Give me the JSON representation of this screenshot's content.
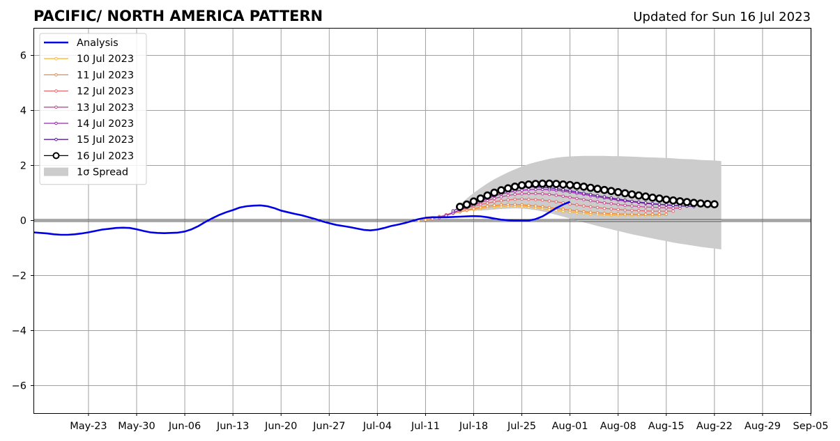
{
  "chart_data": {
    "type": "line",
    "title": "PACIFIC/ NORTH AMERICA PATTERN",
    "subtitle": "Updated for Sun 16 Jul 2023",
    "xlabel": "",
    "ylabel": "",
    "xlim": [
      "2023-05-15",
      "2023-09-05"
    ],
    "ylim": [
      -7,
      7
    ],
    "yticks": [
      6,
      4,
      2,
      0,
      -2,
      -4,
      -6
    ],
    "ytick_labels": [
      "6",
      "4",
      "2",
      "0",
      "−2",
      "−4",
      "−6"
    ],
    "xticks": [
      "2023-05-23",
      "2023-05-30",
      "2023-06-06",
      "2023-06-13",
      "2023-06-20",
      "2023-06-27",
      "2023-07-04",
      "2023-07-11",
      "2023-07-18",
      "2023-07-25",
      "2023-08-01",
      "2023-08-08",
      "2023-08-15",
      "2023-08-22",
      "2023-08-29",
      "2023-09-05"
    ],
    "xtick_labels": [
      "May-23",
      "May-30",
      "Jun-06",
      "Jun-13",
      "Jun-20",
      "Jun-27",
      "Jul-04",
      "Jul-11",
      "Jul-18",
      "Jul-25",
      "Aug-01",
      "Aug-08",
      "Aug-15",
      "Aug-22",
      "Aug-29",
      "Sep-05"
    ],
    "grid": true,
    "zero_line": true,
    "legend_position": "top-left",
    "analysis": {
      "name": "Analysis",
      "color": "#0000e6",
      "start_date": "2023-05-15",
      "values": [
        -0.43,
        -0.45,
        -0.47,
        -0.5,
        -0.52,
        -0.52,
        -0.5,
        -0.47,
        -0.43,
        -0.38,
        -0.33,
        -0.3,
        -0.27,
        -0.26,
        -0.27,
        -0.32,
        -0.38,
        -0.43,
        -0.45,
        -0.46,
        -0.45,
        -0.44,
        -0.4,
        -0.32,
        -0.2,
        -0.05,
        0.08,
        0.2,
        0.3,
        0.38,
        0.47,
        0.52,
        0.54,
        0.55,
        0.52,
        0.45,
        0.36,
        0.3,
        0.24,
        0.19,
        0.12,
        0.05,
        -0.03,
        -0.1,
        -0.16,
        -0.2,
        -0.24,
        -0.29,
        -0.34,
        -0.36,
        -0.33,
        -0.27,
        -0.2,
        -0.15,
        -0.09,
        -0.02,
        0.05,
        0.1,
        0.12,
        0.12,
        0.12,
        0.13,
        0.14,
        0.15,
        0.16,
        0.15,
        0.12,
        0.07,
        0.03,
        0.01,
        0.0,
        0.0,
        0.0,
        0.05,
        0.15,
        0.3,
        0.45,
        0.58,
        0.68
      ]
    },
    "spread": {
      "name": "1σ Spread",
      "color": "#cccccc",
      "start_date": "2023-07-16",
      "upper": [
        0.58,
        0.8,
        1.0,
        1.18,
        1.35,
        1.5,
        1.63,
        1.75,
        1.86,
        1.96,
        2.05,
        2.12,
        2.18,
        2.24,
        2.28,
        2.31,
        2.33,
        2.34,
        2.35,
        2.35,
        2.35,
        2.35,
        2.34,
        2.34,
        2.33,
        2.32,
        2.31,
        2.3,
        2.29,
        2.28,
        2.27,
        2.26,
        2.24,
        2.23,
        2.22,
        2.2,
        2.19,
        2.18,
        2.16
      ],
      "lower": [
        0.42,
        0.38,
        0.36,
        0.36,
        0.38,
        0.4,
        0.42,
        0.43,
        0.44,
        0.43,
        0.41,
        0.38,
        0.33,
        0.27,
        0.21,
        0.14,
        0.07,
        0.0,
        -0.07,
        -0.13,
        -0.2,
        -0.26,
        -0.32,
        -0.38,
        -0.44,
        -0.5,
        -0.55,
        -0.6,
        -0.65,
        -0.7,
        -0.75,
        -0.8,
        -0.84,
        -0.88,
        -0.92,
        -0.96,
        -0.99,
        -1.02,
        -1.05
      ]
    },
    "series": [
      {
        "name": "10 Jul 2023",
        "color": "#f5b942",
        "start_date": "2023-07-10",
        "marker_size": 1.8,
        "values": [
          0.0,
          0.05,
          0.1,
          0.15,
          0.2,
          0.26,
          0.31,
          0.36,
          0.4,
          0.44,
          0.47,
          0.5,
          0.51,
          0.52,
          0.52,
          0.51,
          0.49,
          0.46,
          0.43,
          0.4,
          0.37,
          0.34,
          0.31,
          0.28,
          0.26,
          0.24,
          0.22,
          0.21,
          0.2,
          0.19,
          0.19,
          0.19,
          0.18,
          0.18,
          0.18,
          0.18
        ]
      },
      {
        "name": "11 Jul 2023",
        "color": "#f0883a",
        "start_date": "2023-07-11",
        "marker_size": 1.8,
        "values": [
          0.02,
          0.07,
          0.13,
          0.19,
          0.26,
          0.32,
          0.38,
          0.43,
          0.48,
          0.52,
          0.55,
          0.57,
          0.58,
          0.58,
          0.57,
          0.55,
          0.53,
          0.5,
          0.47,
          0.44,
          0.41,
          0.38,
          0.35,
          0.32,
          0.3,
          0.28,
          0.26,
          0.25,
          0.24,
          0.23,
          0.23,
          0.22,
          0.22,
          0.22,
          0.22,
          0.22
        ]
      },
      {
        "name": "12 Jul 2023",
        "color": "#e06a6f",
        "start_date": "2023-07-12",
        "marker_size": 1.8,
        "values": [
          0.06,
          0.13,
          0.21,
          0.29,
          0.37,
          0.45,
          0.52,
          0.58,
          0.63,
          0.68,
          0.72,
          0.75,
          0.77,
          0.78,
          0.77,
          0.76,
          0.74,
          0.71,
          0.68,
          0.64,
          0.6,
          0.57,
          0.53,
          0.5,
          0.47,
          0.44,
          0.42,
          0.4,
          0.38,
          0.37,
          0.36,
          0.35,
          0.34,
          0.34,
          0.34,
          0.34
        ]
      },
      {
        "name": "13 Jul 2023",
        "color": "#c4478f",
        "start_date": "2023-07-13",
        "marker_size": 1.8,
        "values": [
          0.1,
          0.19,
          0.28,
          0.38,
          0.47,
          0.56,
          0.65,
          0.73,
          0.8,
          0.86,
          0.91,
          0.95,
          0.97,
          0.98,
          0.98,
          0.97,
          0.95,
          0.92,
          0.88,
          0.84,
          0.8,
          0.76,
          0.72,
          0.68,
          0.64,
          0.61,
          0.58,
          0.55,
          0.53,
          0.51,
          0.49,
          0.48,
          0.47,
          0.46,
          0.45,
          0.45
        ]
      },
      {
        "name": "14 Jul 2023",
        "color": "#9a24b0",
        "start_date": "2023-07-14",
        "marker_size": 1.8,
        "values": [
          0.18,
          0.28,
          0.39,
          0.5,
          0.61,
          0.71,
          0.8,
          0.89,
          0.96,
          1.02,
          1.07,
          1.1,
          1.12,
          1.13,
          1.13,
          1.12,
          1.1,
          1.07,
          1.03,
          0.99,
          0.95,
          0.9,
          0.86,
          0.82,
          0.78,
          0.74,
          0.71,
          0.68,
          0.65,
          0.62,
          0.6,
          0.58,
          0.56,
          0.55,
          0.54,
          0.53
        ]
      },
      {
        "name": "15 Jul 2023",
        "color": "#5a1a9a",
        "start_date": "2023-07-15",
        "marker_size": 1.8,
        "values": [
          0.35,
          0.47,
          0.59,
          0.7,
          0.81,
          0.91,
          1.0,
          1.08,
          1.14,
          1.18,
          1.21,
          1.22,
          1.22,
          1.21,
          1.19,
          1.16,
          1.12,
          1.08,
          1.04,
          0.99,
          0.95,
          0.9,
          0.86,
          0.82,
          0.78,
          0.74,
          0.7,
          0.67,
          0.64,
          0.61,
          0.59,
          0.57,
          0.55,
          0.53,
          0.52,
          0.51
        ]
      },
      {
        "name": "16 Jul 2023",
        "color": "#000000",
        "start_date": "2023-07-16",
        "marker_size": 4.5,
        "marker_fill": "#ffffff",
        "values": [
          0.5,
          0.58,
          0.69,
          0.8,
          0.91,
          1.01,
          1.1,
          1.17,
          1.23,
          1.28,
          1.31,
          1.33,
          1.34,
          1.34,
          1.33,
          1.31,
          1.29,
          1.26,
          1.23,
          1.19,
          1.15,
          1.11,
          1.07,
          1.03,
          0.99,
          0.95,
          0.91,
          0.87,
          0.83,
          0.8,
          0.76,
          0.73,
          0.7,
          0.67,
          0.64,
          0.62,
          0.6,
          0.59
        ]
      }
    ]
  }
}
